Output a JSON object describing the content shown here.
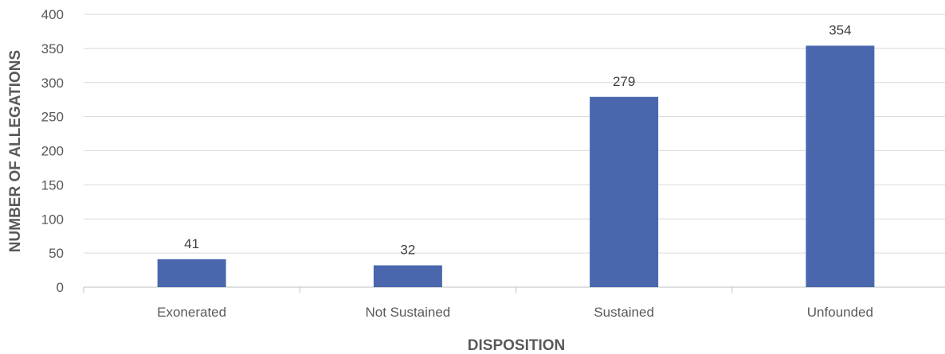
{
  "chart_data": {
    "type": "bar",
    "title": "",
    "xlabel": "DISPOSITION",
    "ylabel": "NUMBER OF ALLEGATIONS",
    "categories": [
      "Exonerated",
      "Not Sustained",
      "Sustained",
      "Unfounded"
    ],
    "values": [
      41,
      32,
      279,
      354
    ],
    "data_labels": [
      "41",
      "32",
      "279",
      "354"
    ],
    "ylim": [
      0,
      400
    ],
    "yticks": [
      0,
      50,
      100,
      150,
      200,
      250,
      300,
      350,
      400
    ],
    "grid": true,
    "legend": "none",
    "bar_color": "#4a67ad"
  }
}
